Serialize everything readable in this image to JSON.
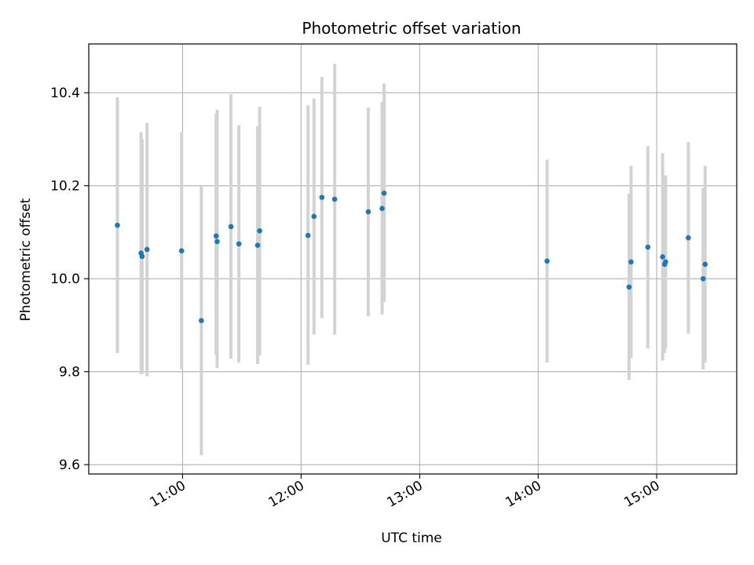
{
  "chart_data": {
    "type": "scatter",
    "title": "Photometric offset variation",
    "xlabel": "UTC time",
    "ylabel": "Photometric offset",
    "x_ticks": [
      "11:00",
      "12:00",
      "13:00",
      "14:00",
      "15:00"
    ],
    "y_ticks": [
      "9.6",
      "9.8",
      "10.0",
      "10.2",
      "10.4"
    ],
    "xlim": [
      "10:12:30",
      "15:40:30"
    ],
    "ylim": [
      9.58,
      10.505
    ],
    "grid": true,
    "colors": {
      "point": "#1f77b4",
      "errorbar": "#d3d3d3",
      "grid": "#b0b0b0",
      "axes": "#000000"
    },
    "points": [
      {
        "x": "10:27:00",
        "y": 10.115,
        "ylow": 9.84,
        "yhigh": 10.39
      },
      {
        "x": "10:39:00",
        "y": 10.055,
        "ylow": 9.795,
        "yhigh": 10.315
      },
      {
        "x": "10:39:30",
        "y": 10.048,
        "ylow": 9.795,
        "yhigh": 10.3
      },
      {
        "x": "10:42:00",
        "y": 10.063,
        "ylow": 9.79,
        "yhigh": 10.335
      },
      {
        "x": "10:59:30",
        "y": 10.06,
        "ylow": 9.805,
        "yhigh": 10.315
      },
      {
        "x": "11:09:30",
        "y": 9.91,
        "ylow": 9.62,
        "yhigh": 10.2
      },
      {
        "x": "11:17:00",
        "y": 10.092,
        "ylow": 9.835,
        "yhigh": 10.355
      },
      {
        "x": "11:17:30",
        "y": 10.08,
        "ylow": 9.808,
        "yhigh": 10.364
      },
      {
        "x": "11:24:30",
        "y": 10.112,
        "ylow": 9.828,
        "yhigh": 10.397
      },
      {
        "x": "11:28:30",
        "y": 10.075,
        "ylow": 9.82,
        "yhigh": 10.33
      },
      {
        "x": "11:38:00",
        "y": 10.072,
        "ylow": 9.816,
        "yhigh": 10.328
      },
      {
        "x": "11:39:00",
        "y": 10.103,
        "ylow": 9.835,
        "yhigh": 10.37
      },
      {
        "x": "12:03:30",
        "y": 10.093,
        "ylow": 9.815,
        "yhigh": 10.373
      },
      {
        "x": "12:06:30",
        "y": 10.134,
        "ylow": 9.88,
        "yhigh": 10.388
      },
      {
        "x": "12:10:30",
        "y": 10.175,
        "ylow": 9.915,
        "yhigh": 10.434
      },
      {
        "x": "12:17:00",
        "y": 10.171,
        "ylow": 9.88,
        "yhigh": 10.462
      },
      {
        "x": "12:34:00",
        "y": 10.144,
        "ylow": 9.919,
        "yhigh": 10.368
      },
      {
        "x": "12:41:00",
        "y": 10.151,
        "ylow": 9.923,
        "yhigh": 10.38
      },
      {
        "x": "12:42:00",
        "y": 10.184,
        "ylow": 9.95,
        "yhigh": 10.42
      },
      {
        "x": "14:04:30",
        "y": 10.038,
        "ylow": 9.82,
        "yhigh": 10.256
      },
      {
        "x": "14:46:00",
        "y": 9.982,
        "ylow": 9.782,
        "yhigh": 10.183
      },
      {
        "x": "14:47:00",
        "y": 10.036,
        "ylow": 9.83,
        "yhigh": 10.243
      },
      {
        "x": "14:55:30",
        "y": 10.068,
        "ylow": 9.85,
        "yhigh": 10.285
      },
      {
        "x": "15:03:00",
        "y": 10.047,
        "ylow": 9.824,
        "yhigh": 10.27
      },
      {
        "x": "15:04:00",
        "y": 10.031,
        "ylow": 9.84,
        "yhigh": 10.222
      },
      {
        "x": "15:04:30",
        "y": 10.036,
        "ylow": 9.85,
        "yhigh": 10.222
      },
      {
        "x": "15:16:00",
        "y": 10.088,
        "ylow": 9.882,
        "yhigh": 10.294
      },
      {
        "x": "15:23:30",
        "y": 10.0,
        "ylow": 9.805,
        "yhigh": 10.195
      },
      {
        "x": "15:24:30",
        "y": 10.031,
        "ylow": 9.82,
        "yhigh": 10.243
      }
    ]
  }
}
